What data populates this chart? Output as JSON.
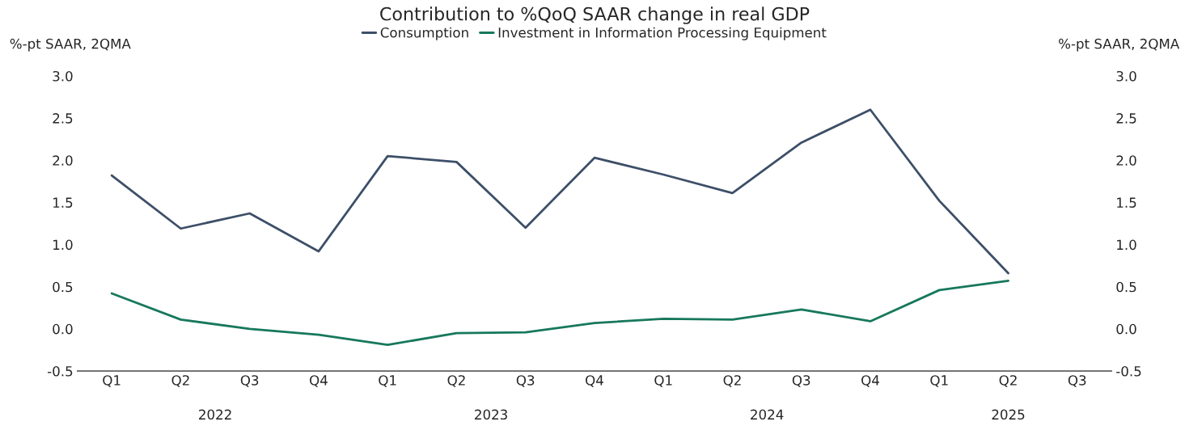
{
  "chart_data": {
    "type": "line",
    "title": "Contribution to %QoQ SAAR change in real GDP",
    "ylabel": "%-pt SAAR, 2QMA",
    "y2label": "%-pt SAAR, 2QMA",
    "categories": [
      "Q1",
      "Q2",
      "Q3",
      "Q4",
      "Q1",
      "Q2",
      "Q3",
      "Q4",
      "Q1",
      "Q2",
      "Q3",
      "Q4",
      "Q1",
      "Q2",
      "Q3"
    ],
    "annotations": [
      "2022",
      "2023",
      "2024",
      "2025"
    ],
    "series": [
      {
        "name": "Consumption",
        "color": "#3d4f68",
        "values": [
          1.82,
          1.19,
          1.37,
          0.92,
          2.05,
          1.98,
          1.2,
          2.03,
          1.83,
          1.61,
          2.21,
          2.6,
          1.52,
          0.66,
          null
        ]
      },
      {
        "name": "Investment in Information Processing Equipment",
        "color": "#17785c",
        "values": [
          0.42,
          0.11,
          0.0,
          -0.07,
          -0.19,
          -0.05,
          -0.04,
          0.07,
          0.12,
          0.11,
          0.23,
          0.09,
          0.46,
          0.57,
          null
        ]
      }
    ],
    "ylim": [
      -0.5,
      3.0
    ],
    "yticks": [
      {
        "value": -0.5,
        "label": "-0.5"
      },
      {
        "value": 0.0,
        "label": "0.0"
      },
      {
        "value": 0.5,
        "label": "0.5"
      },
      {
        "value": 1.0,
        "label": "1.0"
      },
      {
        "value": 1.5,
        "label": "1.5"
      },
      {
        "value": 2.0,
        "label": "2.0"
      },
      {
        "value": 2.5,
        "label": "2.5"
      },
      {
        "value": 3.0,
        "label": "3.0"
      }
    ],
    "y2lim": [
      -0.5,
      3.0
    ],
    "y2ticks": [
      {
        "value": -0.5,
        "label": "-0.5"
      },
      {
        "value": 0.0,
        "label": "0.0"
      },
      {
        "value": 0.5,
        "label": "0.5"
      },
      {
        "value": 1.0,
        "label": "1.0"
      },
      {
        "value": 1.5,
        "label": "1.5"
      },
      {
        "value": 2.0,
        "label": "2.0"
      },
      {
        "value": 2.5,
        "label": "2.5"
      },
      {
        "value": 3.0,
        "label": "3.0"
      }
    ],
    "grid": false,
    "legend": "top",
    "marker": "none",
    "line_style": "solid"
  }
}
